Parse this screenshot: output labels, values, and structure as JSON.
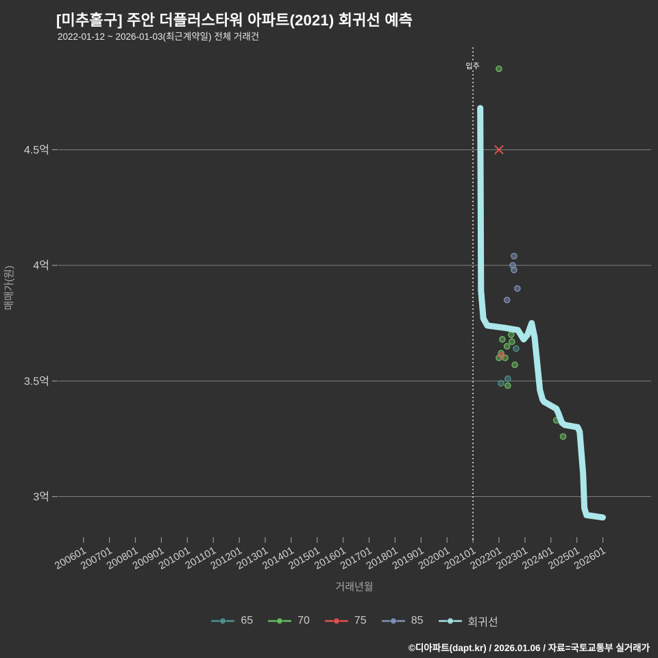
{
  "header": {
    "title": "[미추홀구] 주안 더플러스타워 아파트(2021) 회귀선 예측",
    "subtitle": "2022-01-12 ~ 2026-01-03(최근계약일) 전체 거래건"
  },
  "footer": {
    "credit": "©디아파트(dapt.kr) / 2026.01.06 / 자료=국토교통부 실거래가"
  },
  "colors": {
    "background": "#303030",
    "title": "#ffffff",
    "grid": "#9a9a9a",
    "tick_label": "#d2d2d2",
    "axis_title": "#a6a6a6",
    "vline": "#e8e8e8",
    "series_65": "#4f958f",
    "series_70": "#69bf63",
    "series_75": "#e05252",
    "series_85": "#8093bb",
    "regression": "#abe7ea"
  },
  "chart_data": {
    "type": "scatter",
    "title": "[미추홀구] 주안 더플러스타워 아파트(2021) 회귀선 예측",
    "subtitle": "2022-01-12 ~ 2026-01-03(최근계약일) 전체 거래건",
    "xlabel": "거래년월",
    "ylabel": "매매가(원)",
    "unit": "억원",
    "grid": true,
    "legend_position": "bottom-center",
    "xlim": [
      2005.03,
      2027.86
    ],
    "ylim": [
      2.8,
      4.94
    ],
    "x_ticks": [
      {
        "year": 2006,
        "label": "200601"
      },
      {
        "year": 2007,
        "label": "200701"
      },
      {
        "year": 2008,
        "label": "200801"
      },
      {
        "year": 2009,
        "label": "200901"
      },
      {
        "year": 2010,
        "label": "201001"
      },
      {
        "year": 2011,
        "label": "201101"
      },
      {
        "year": 2012,
        "label": "201201"
      },
      {
        "year": 2013,
        "label": "201301"
      },
      {
        "year": 2014,
        "label": "201401"
      },
      {
        "year": 2015,
        "label": "201501"
      },
      {
        "year": 2016,
        "label": "201601"
      },
      {
        "year": 2017,
        "label": "201701"
      },
      {
        "year": 2018,
        "label": "201801"
      },
      {
        "year": 2019,
        "label": "201901"
      },
      {
        "year": 2020,
        "label": "202001"
      },
      {
        "year": 2021,
        "label": "202101"
      },
      {
        "year": 2022,
        "label": "202201"
      },
      {
        "year": 2023,
        "label": "202301"
      },
      {
        "year": 2024,
        "label": "202401"
      },
      {
        "year": 2025,
        "label": "202501"
      },
      {
        "year": 2026,
        "label": "202601"
      }
    ],
    "y_ticks": [
      {
        "value": 3.0,
        "label": "3억"
      },
      {
        "value": 3.5,
        "label": "3.5억"
      },
      {
        "value": 4.0,
        "label": "4억"
      },
      {
        "value": 4.5,
        "label": "4.5억"
      }
    ],
    "vline": {
      "x": 2021.0,
      "label": "입주",
      "style": "dotted"
    },
    "series": [
      {
        "name": "65",
        "type": "scatter",
        "marker": "circle",
        "color": "#4f958f",
        "points": [
          [
            2022.66,
            3.64
          ],
          [
            2022.34,
            3.51
          ],
          [
            2022.08,
            3.49
          ]
        ]
      },
      {
        "name": "70",
        "type": "scatter",
        "marker": "circle",
        "color": "#69bf63",
        "points": [
          [
            2022.0,
            4.85
          ],
          [
            2022.47,
            3.7
          ],
          [
            2022.13,
            3.68
          ],
          [
            2022.5,
            3.67
          ],
          [
            2022.31,
            3.65
          ],
          [
            2022.08,
            3.62
          ],
          [
            2022.24,
            3.6
          ],
          [
            2022.0,
            3.6
          ],
          [
            2022.61,
            3.57
          ],
          [
            2022.34,
            3.48
          ],
          [
            2024.21,
            3.33
          ],
          [
            2024.47,
            3.26
          ]
        ]
      },
      {
        "name": "75",
        "type": "scatter",
        "marker": "circle",
        "color": "#e05252",
        "points": [
          [
            2022.1,
            3.61
          ]
        ],
        "x_points": [
          [
            2022.0,
            4.5
          ]
        ]
      },
      {
        "name": "85",
        "type": "scatter",
        "marker": "circle",
        "color": "#8093bb",
        "points": [
          [
            2022.58,
            4.04
          ],
          [
            2022.53,
            4.0
          ],
          [
            2022.58,
            3.98
          ],
          [
            2022.71,
            3.9
          ],
          [
            2022.31,
            3.85
          ]
        ]
      },
      {
        "name": "회귀선",
        "type": "line",
        "color": "#abe7ea",
        "width": 9,
        "points": [
          [
            2021.28,
            4.68
          ],
          [
            2021.31,
            3.89
          ],
          [
            2021.4,
            3.77
          ],
          [
            2021.55,
            3.74
          ],
          [
            2022.2,
            3.73
          ],
          [
            2022.73,
            3.72
          ],
          [
            2022.95,
            3.68
          ],
          [
            2023.1,
            3.7
          ],
          [
            2023.26,
            3.75
          ],
          [
            2023.37,
            3.69
          ],
          [
            2023.58,
            3.46
          ],
          [
            2023.68,
            3.42
          ],
          [
            2023.74,
            3.41
          ],
          [
            2024.21,
            3.38
          ],
          [
            2024.29,
            3.36
          ],
          [
            2024.42,
            3.32
          ],
          [
            2024.53,
            3.31
          ],
          [
            2025.03,
            3.3
          ],
          [
            2025.11,
            3.28
          ],
          [
            2025.24,
            3.1
          ],
          [
            2025.29,
            2.95
          ],
          [
            2025.37,
            2.92
          ],
          [
            2026.0,
            2.91
          ]
        ]
      }
    ]
  }
}
